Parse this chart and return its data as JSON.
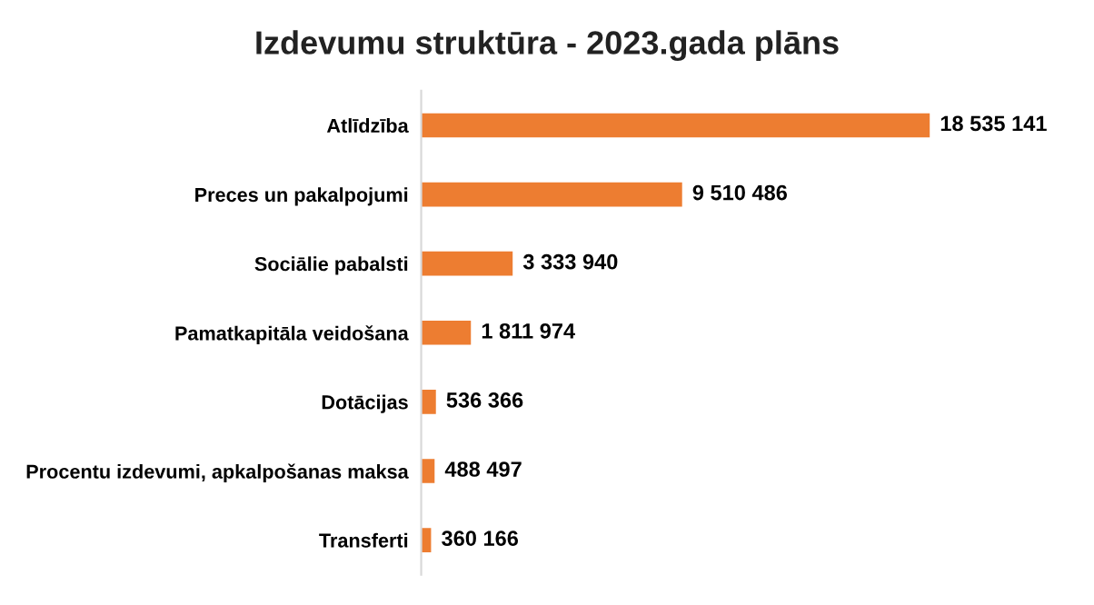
{
  "chart_data": {
    "type": "bar",
    "orientation": "horizontal",
    "title": "Izdevumu struktūra - 2023.gada plāns",
    "categories": [
      "Atlīdzība",
      "Preces un pakalpojumi",
      "Sociālie pabalsti",
      "Pamatkapitāla veidošana",
      "Dotācijas",
      "Procentu izdevumi, apkalpošanas maksa",
      "Transferti"
    ],
    "values": [
      18535141,
      9510486,
      3333940,
      1811974,
      536366,
      488497,
      360166
    ],
    "value_labels": [
      "18 535 141",
      "9 510 486",
      "3 333 940",
      "1 811 974",
      "536 366",
      "488 497",
      "360 166"
    ],
    "color": "#ed7d31",
    "tick_labels": "y",
    "grid": false,
    "legend": false
  }
}
